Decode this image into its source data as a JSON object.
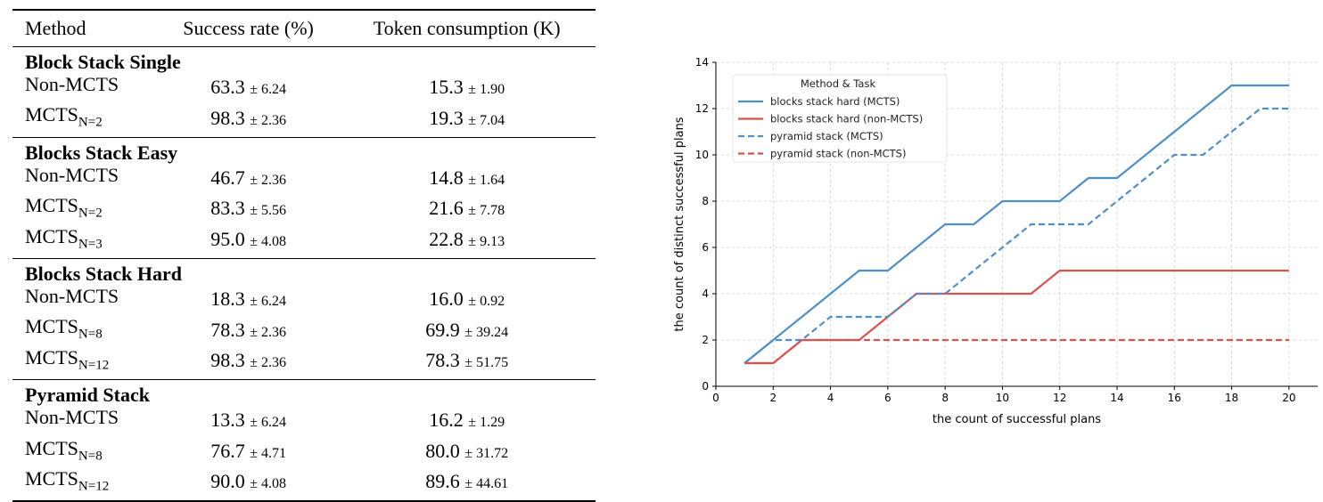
{
  "table": {
    "headers": [
      "Method",
      "Success rate (%)",
      "Token consumption (K)"
    ],
    "groups": [
      {
        "title": "Block Stack Single",
        "rows": [
          {
            "method": "Non-MCTS",
            "sub": "",
            "success": "63.3",
            "success_std": "6.24",
            "tokens": "15.3",
            "tokens_std": "1.90"
          },
          {
            "method": "MCTS",
            "sub": "N=2",
            "success": "98.3",
            "success_std": "2.36",
            "tokens": "19.3",
            "tokens_std": "7.04"
          }
        ]
      },
      {
        "title": "Blocks Stack Easy",
        "rows": [
          {
            "method": "Non-MCTS",
            "sub": "",
            "success": "46.7",
            "success_std": "2.36",
            "tokens": "14.8",
            "tokens_std": "1.64"
          },
          {
            "method": "MCTS",
            "sub": "N=2",
            "success": "83.3",
            "success_std": "5.56",
            "tokens": "21.6",
            "tokens_std": "7.78"
          },
          {
            "method": "MCTS",
            "sub": "N=3",
            "success": "95.0",
            "success_std": "4.08",
            "tokens": "22.8",
            "tokens_std": "9.13"
          }
        ]
      },
      {
        "title": "Blocks Stack Hard",
        "rows": [
          {
            "method": "Non-MCTS",
            "sub": "",
            "success": "18.3",
            "success_std": "6.24",
            "tokens": "16.0",
            "tokens_std": "0.92"
          },
          {
            "method": "MCTS",
            "sub": "N=8",
            "success": "78.3",
            "success_std": "2.36",
            "tokens": "69.9",
            "tokens_std": "39.24"
          },
          {
            "method": "MCTS",
            "sub": "N=12",
            "success": "98.3",
            "success_std": "2.36",
            "tokens": "78.3",
            "tokens_std": "51.75"
          }
        ]
      },
      {
        "title": "Pyramid Stack",
        "rows": [
          {
            "method": "Non-MCTS",
            "sub": "",
            "success": "13.3",
            "success_std": "6.24",
            "tokens": "16.2",
            "tokens_std": "1.29"
          },
          {
            "method": "MCTS",
            "sub": "N=8",
            "success": "76.7",
            "success_std": "4.71",
            "tokens": "80.0",
            "tokens_std": "31.72"
          },
          {
            "method": "MCTS",
            "sub": "N=12",
            "success": "90.0",
            "success_std": "4.08",
            "tokens": "89.6",
            "tokens_std": "44.61"
          }
        ]
      }
    ]
  },
  "chart_data": {
    "type": "line",
    "xlabel": "the count of successful plans",
    "ylabel": "the count of distinct successful plans",
    "xlim": [
      0,
      21
    ],
    "ylim": [
      0,
      14
    ],
    "xticks": [
      0,
      2,
      4,
      6,
      8,
      10,
      12,
      14,
      16,
      18,
      20
    ],
    "yticks": [
      0,
      2,
      4,
      6,
      8,
      10,
      12,
      14
    ],
    "grid": true,
    "legend": {
      "title": "Method & Task",
      "placement": "top-left"
    },
    "x": [
      1,
      2,
      3,
      4,
      5,
      6,
      7,
      8,
      9,
      10,
      11,
      12,
      13,
      14,
      15,
      16,
      17,
      18,
      19,
      20
    ],
    "series": [
      {
        "name": "blocks stack hard (MCTS)",
        "color": "#4f8fc6",
        "dash": "solid",
        "values": [
          1,
          2,
          3,
          4,
          5,
          5,
          6,
          7,
          7,
          8,
          8,
          8,
          9,
          9,
          10,
          11,
          12,
          13,
          13,
          13
        ]
      },
      {
        "name": "blocks stack hard (non-MCTS)",
        "color": "#d9534f",
        "dash": "solid",
        "values": [
          1,
          1,
          2,
          2,
          2,
          3,
          4,
          4,
          4,
          4,
          4,
          5,
          5,
          5,
          5,
          5,
          5,
          5,
          5,
          5
        ]
      },
      {
        "name": "pyramid stack (MCTS)",
        "color": "#4f8fc6",
        "dash": "dashed",
        "values": [
          1,
          2,
          2,
          3,
          3,
          3,
          4,
          4,
          5,
          6,
          7,
          7,
          7,
          8,
          9,
          10,
          10,
          11,
          12,
          12
        ]
      },
      {
        "name": "pyramid stack (non-MCTS)",
        "color": "#d9534f",
        "dash": "dashed",
        "values": [
          1,
          1,
          2,
          2,
          2,
          2,
          2,
          2,
          2,
          2,
          2,
          2,
          2,
          2,
          2,
          2,
          2,
          2,
          2,
          2
        ]
      }
    ]
  }
}
